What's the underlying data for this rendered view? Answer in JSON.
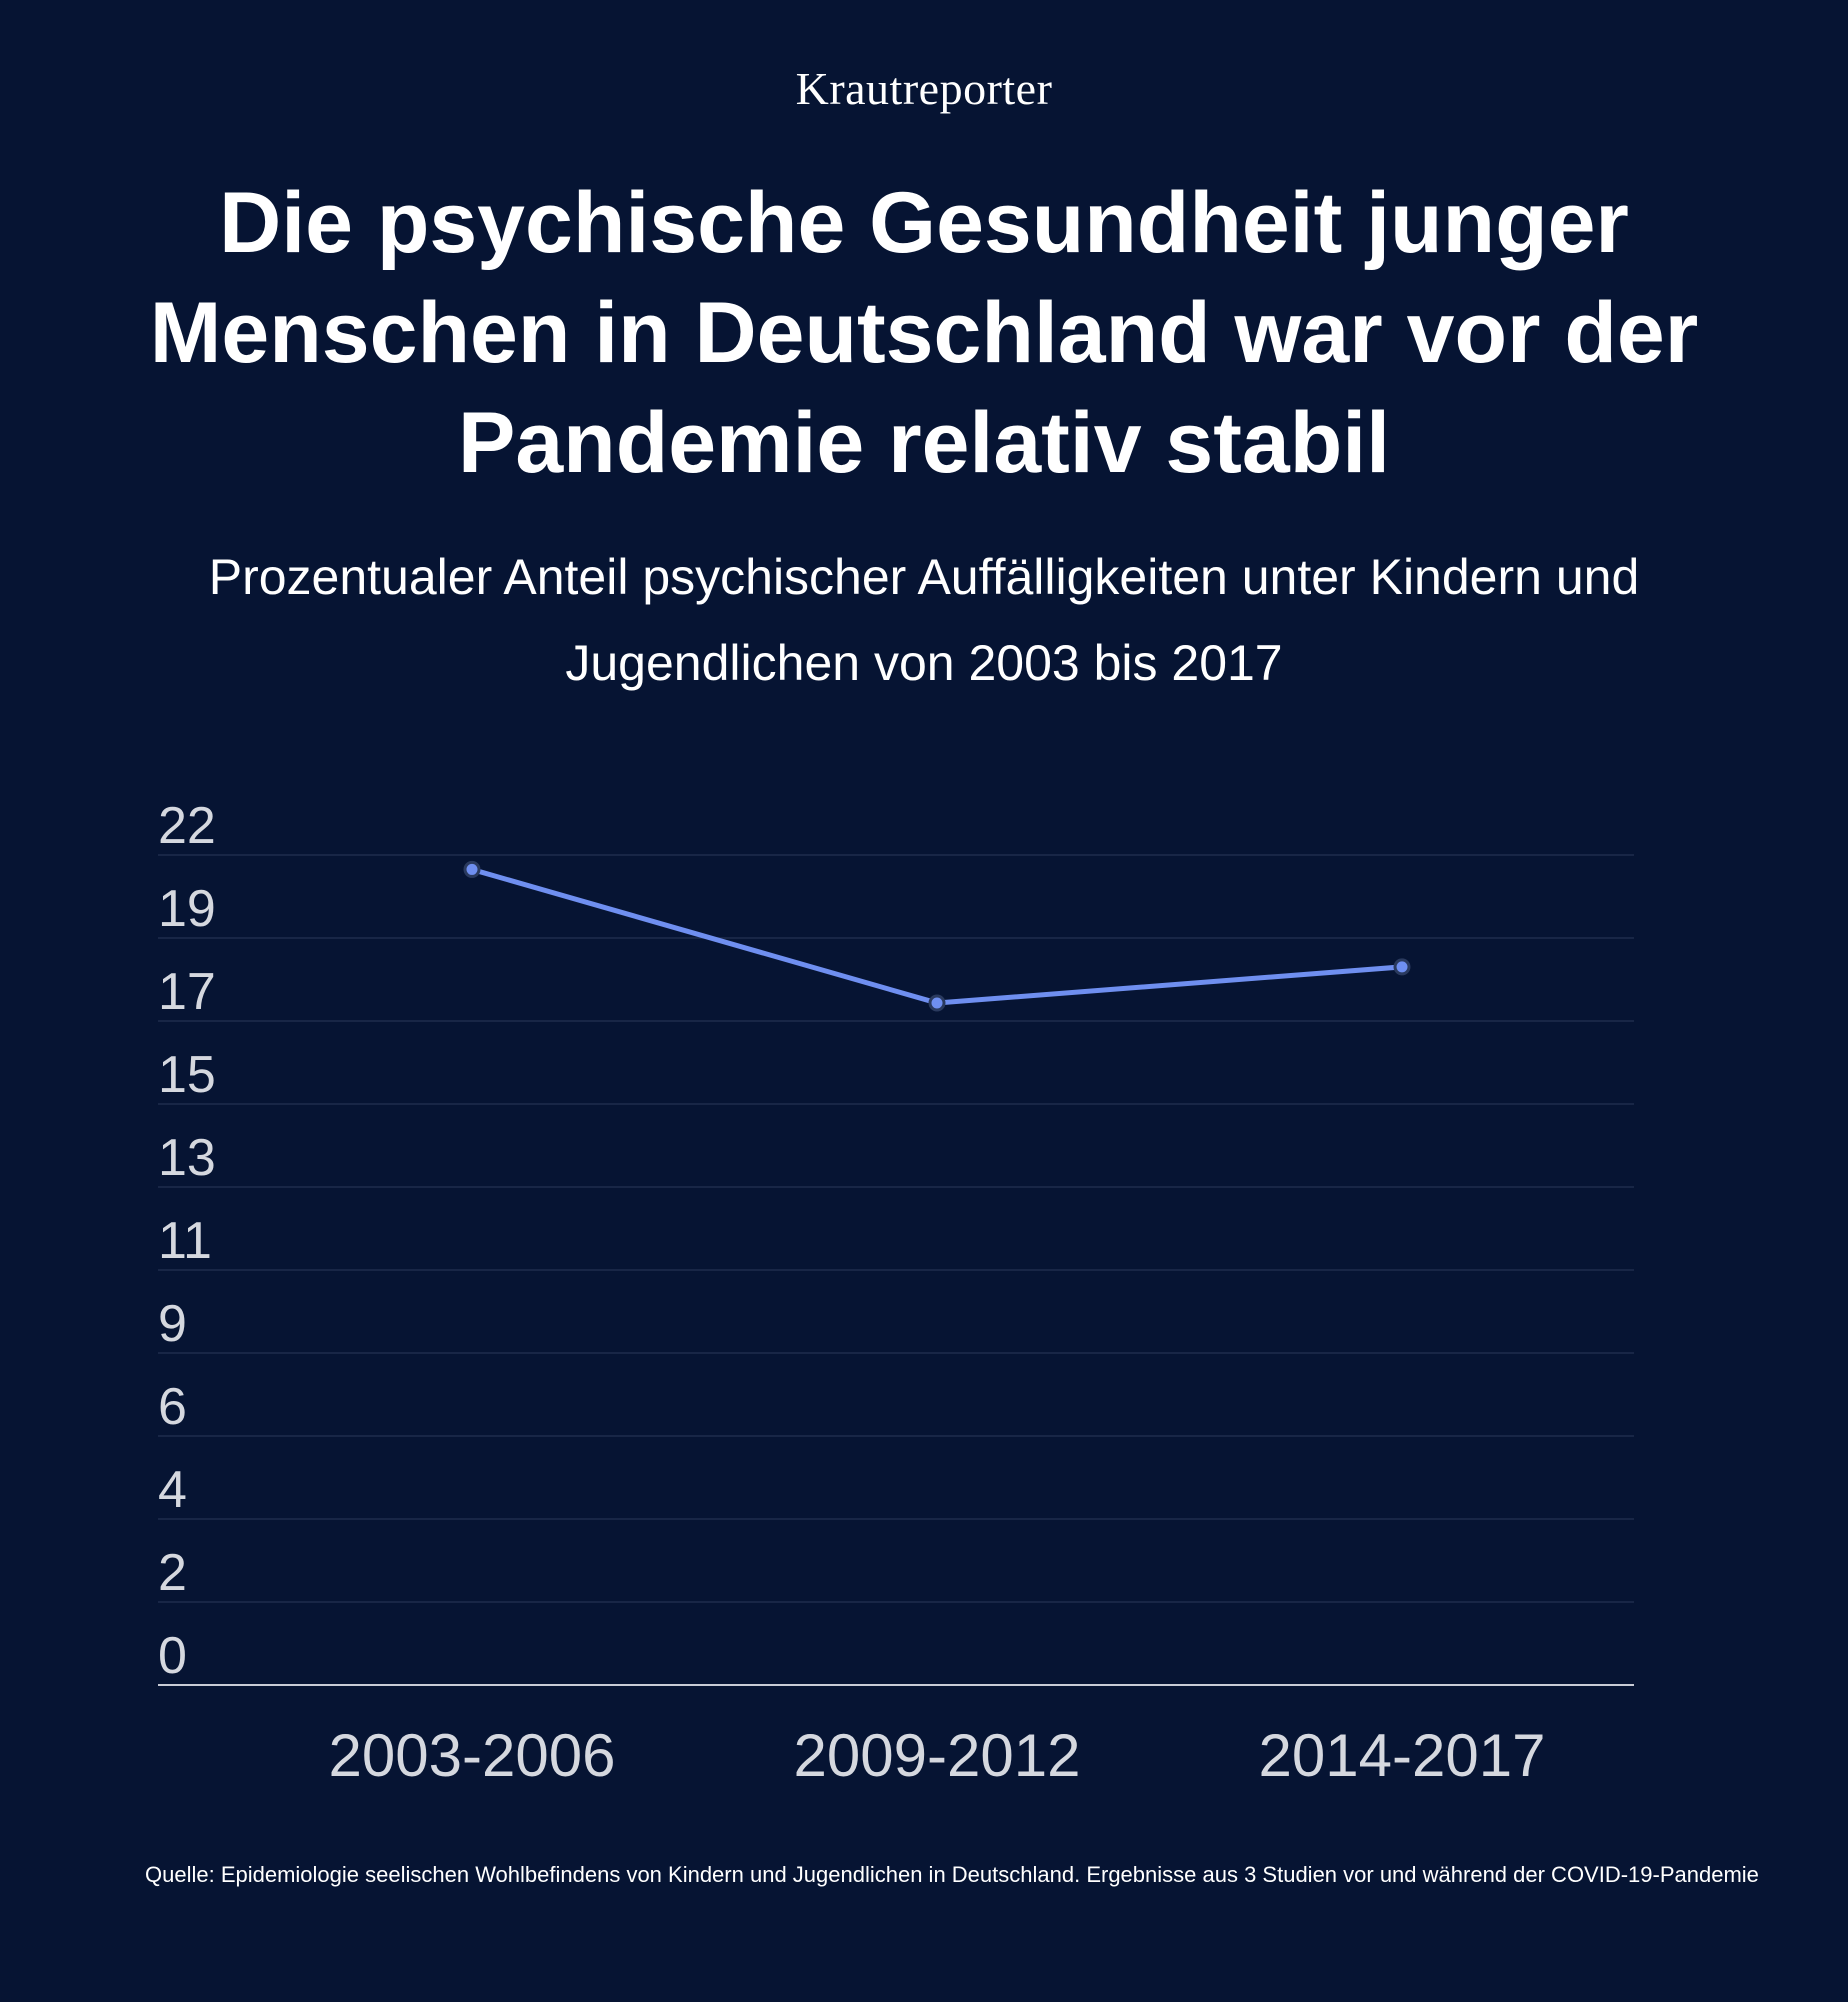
{
  "brand": "Krautreporter",
  "title": "Die psychische Gesundheit junger Menschen in Deutschland war vor der Pandemie relativ stabil",
  "subtitle": "Prozentualer Anteil psychischer Auffälligkeiten unter Kindern und Jugendlichen von 2003 bis 2017",
  "source": "Quelle: Epidemiologie seelischen Wohlbefindens von Kindern und Jugendlichen in Deutschland. Ergebnisse aus 3 Studien vor und während der COVID-19-Pandemie",
  "colors": {
    "background": "#061433",
    "line": "#6f8ff0",
    "grid": "#1f2d4d",
    "axis": "#c8ccd6",
    "tick_text": "#d5d8df"
  },
  "chart_data": {
    "type": "line",
    "categories": [
      "2003-2006",
      "2009-2012",
      "2014-2017"
    ],
    "series": [
      {
        "values": [
          20.3,
          16.6,
          17.6
        ]
      }
    ],
    "y_ticks": [
      "22",
      "19",
      "17",
      "15",
      "13",
      "11",
      "9",
      "6",
      "4",
      "2",
      "0"
    ],
    "ylim": [
      0,
      22
    ],
    "grid": true,
    "legend": "none",
    "xlabel": "",
    "ylabel": ""
  }
}
